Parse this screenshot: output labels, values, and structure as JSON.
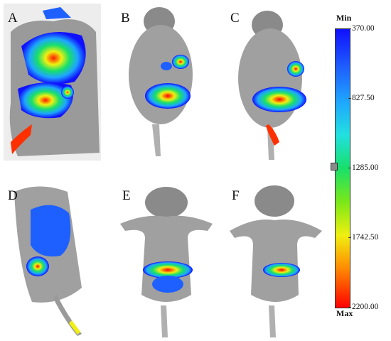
{
  "panels": [
    {
      "label": "A"
    },
    {
      "label": "B"
    },
    {
      "label": "C"
    },
    {
      "label": "D"
    },
    {
      "label": "E"
    },
    {
      "label": "F"
    }
  ],
  "colorbar": {
    "min_label": "Min",
    "max_label": "Max",
    "ticks": [
      "370.00",
      "827.50",
      "1285.00",
      "1742.50",
      "2200.00"
    ],
    "gradient": [
      "#1010ff",
      "#1ea6ff",
      "#22e0e0",
      "#18e06a",
      "#f0f010",
      "#ff8a00",
      "#ff0000"
    ]
  }
}
